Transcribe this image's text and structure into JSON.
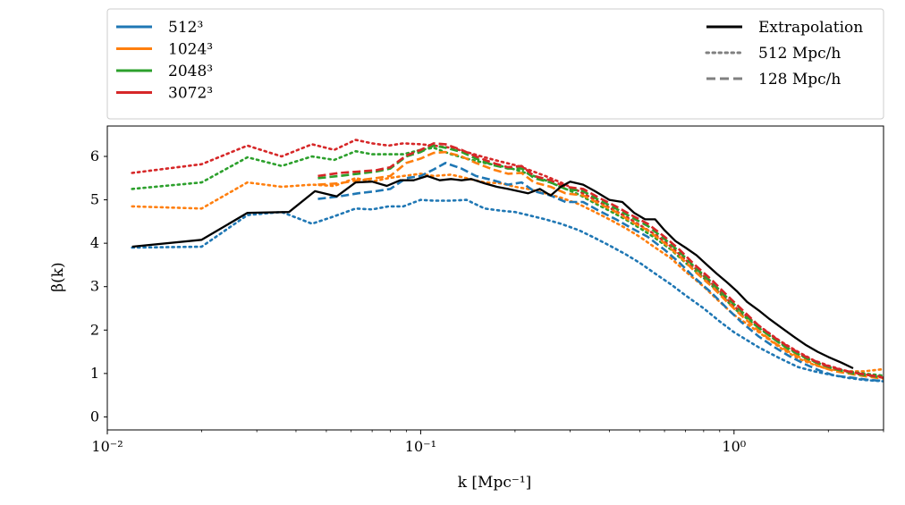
{
  "chart_data": {
    "type": "line",
    "title": "",
    "xlabel": "k [Mpc⁻¹]",
    "ylabel": "β(k)",
    "xscale": "log",
    "xlim": [
      0.01,
      3.0
    ],
    "ylim": [
      -0.3,
      6.7
    ],
    "yticks": [
      0,
      1,
      2,
      3,
      4,
      5,
      6
    ],
    "xticks": [
      {
        "value": 0.01,
        "label": "10⁻²"
      },
      {
        "value": 0.1,
        "label": "10⁻¹"
      },
      {
        "value": 1,
        "label": "10⁰"
      }
    ],
    "legend_left": [
      {
        "label": "512³",
        "color": "#1f77b4",
        "style": "solid"
      },
      {
        "label": "1024³",
        "color": "#ff7f0e",
        "style": "solid"
      },
      {
        "label": "2048³",
        "color": "#2ca02c",
        "style": "solid"
      },
      {
        "label": "3072³",
        "color": "#d62728",
        "style": "solid"
      }
    ],
    "legend_right": [
      {
        "label": "Extrapolation",
        "color": "#000000",
        "style": "solid"
      },
      {
        "label": "512 Mpc/h",
        "color": "#808080",
        "style": "dotted"
      },
      {
        "label": "128 Mpc/h",
        "color": "#808080",
        "style": "dashed"
      }
    ],
    "series": [
      {
        "name": "512³ (512 Mpc/h)",
        "color": "#1f77b4",
        "style": "dotted",
        "x": [
          0.012,
          0.02,
          0.028,
          0.036,
          0.045,
          0.053,
          0.062,
          0.07,
          0.079,
          0.088,
          0.1,
          0.11,
          0.125,
          0.14,
          0.16,
          0.18,
          0.2,
          0.22,
          0.25,
          0.28,
          0.32,
          0.36,
          0.4,
          0.45,
          0.5,
          0.56,
          0.63,
          0.7,
          0.8,
          0.9,
          1.0,
          1.2,
          1.4,
          1.6,
          1.8,
          2.0,
          2.3,
          2.6,
          3.0
        ],
        "y": [
          3.9,
          3.92,
          4.65,
          4.72,
          4.45,
          4.62,
          4.8,
          4.78,
          4.85,
          4.85,
          5.0,
          4.98,
          4.98,
          5.0,
          4.8,
          4.75,
          4.72,
          4.65,
          4.55,
          4.45,
          4.3,
          4.12,
          3.95,
          3.75,
          3.55,
          3.3,
          3.05,
          2.8,
          2.5,
          2.2,
          1.95,
          1.6,
          1.35,
          1.15,
          1.05,
          0.98,
          0.9,
          0.85,
          0.82
        ]
      },
      {
        "name": "1024³ (512 Mpc/h)",
        "color": "#ff7f0e",
        "style": "dotted",
        "x": [
          0.012,
          0.02,
          0.028,
          0.036,
          0.045,
          0.053,
          0.062,
          0.07,
          0.079,
          0.088,
          0.1,
          0.11,
          0.125,
          0.14,
          0.16,
          0.18,
          0.2,
          0.22,
          0.25,
          0.28,
          0.32,
          0.36,
          0.4,
          0.45,
          0.5,
          0.56,
          0.63,
          0.7,
          0.8,
          0.9,
          1.0,
          1.2,
          1.4,
          1.6,
          1.8,
          2.0,
          2.3,
          2.6,
          3.0
        ],
        "y": [
          4.85,
          4.8,
          5.4,
          5.3,
          5.35,
          5.32,
          5.5,
          5.42,
          5.5,
          5.55,
          5.6,
          5.55,
          5.58,
          5.5,
          5.4,
          5.38,
          5.3,
          5.25,
          5.15,
          5.05,
          4.9,
          4.72,
          4.55,
          4.35,
          4.15,
          3.9,
          3.65,
          3.35,
          3.0,
          2.65,
          2.35,
          1.95,
          1.6,
          1.35,
          1.2,
          1.1,
          1.05,
          1.05,
          1.1
        ]
      },
      {
        "name": "2048³ (512 Mpc/h)",
        "color": "#2ca02c",
        "style": "dotted",
        "x": [
          0.012,
          0.02,
          0.028,
          0.036,
          0.045,
          0.053,
          0.062,
          0.07,
          0.079,
          0.088,
          0.1,
          0.11,
          0.125,
          0.14,
          0.16,
          0.18,
          0.2,
          0.22,
          0.25,
          0.28,
          0.32,
          0.36,
          0.4,
          0.45,
          0.5,
          0.56,
          0.63,
          0.7,
          0.8,
          0.9,
          1.0,
          1.2,
          1.4,
          1.6,
          1.8,
          2.0,
          2.3,
          2.6,
          3.0
        ],
        "y": [
          5.25,
          5.4,
          5.98,
          5.78,
          6.0,
          5.92,
          6.12,
          6.05,
          6.05,
          6.05,
          6.15,
          6.2,
          6.05,
          5.95,
          5.85,
          5.78,
          5.7,
          5.6,
          5.45,
          5.3,
          5.12,
          4.92,
          4.75,
          4.55,
          4.35,
          4.12,
          3.85,
          3.55,
          3.2,
          2.85,
          2.5,
          2.05,
          1.7,
          1.45,
          1.28,
          1.15,
          1.05,
          1.0,
          0.95
        ]
      },
      {
        "name": "3072³ (512 Mpc/h)",
        "color": "#d62728",
        "style": "dotted",
        "x": [
          0.012,
          0.02,
          0.028,
          0.036,
          0.045,
          0.053,
          0.062,
          0.07,
          0.079,
          0.088,
          0.1,
          0.11,
          0.125,
          0.14,
          0.16,
          0.18,
          0.2,
          0.22,
          0.25,
          0.28,
          0.32,
          0.36,
          0.4,
          0.45,
          0.5,
          0.56,
          0.63,
          0.7,
          0.8,
          0.9,
          1.0,
          1.2,
          1.4,
          1.6,
          1.8,
          2.0,
          2.3,
          2.6,
          3.0
        ],
        "y": [
          5.62,
          5.82,
          6.25,
          6.0,
          6.28,
          6.15,
          6.38,
          6.3,
          6.25,
          6.3,
          6.28,
          6.25,
          6.2,
          6.1,
          5.98,
          5.88,
          5.8,
          5.7,
          5.55,
          5.4,
          5.2,
          5.0,
          4.82,
          4.62,
          4.42,
          4.2,
          3.92,
          3.62,
          3.25,
          2.9,
          2.55,
          2.1,
          1.75,
          1.5,
          1.3,
          1.18,
          1.05,
          0.98,
          0.92
        ]
      },
      {
        "name": "512³ (128 Mpc/h)",
        "color": "#1f77b4",
        "style": "dashed",
        "x": [
          0.047,
          0.055,
          0.063,
          0.072,
          0.08,
          0.09,
          0.1,
          0.11,
          0.12,
          0.135,
          0.15,
          0.17,
          0.19,
          0.21,
          0.23,
          0.26,
          0.29,
          0.33,
          0.37,
          0.42,
          0.47,
          0.53,
          0.6,
          0.67,
          0.75,
          0.85,
          0.95,
          1.05,
          1.2,
          1.35,
          1.5,
          1.7,
          1.9,
          2.1,
          2.4,
          2.7,
          3.0
        ],
        "y": [
          5.02,
          5.08,
          5.15,
          5.2,
          5.25,
          5.5,
          5.55,
          5.7,
          5.85,
          5.72,
          5.55,
          5.45,
          5.35,
          5.4,
          5.2,
          5.1,
          4.95,
          4.95,
          4.75,
          4.55,
          4.35,
          4.15,
          3.85,
          3.55,
          3.2,
          2.85,
          2.5,
          2.2,
          1.85,
          1.6,
          1.4,
          1.2,
          1.05,
          0.95,
          0.9,
          0.85,
          0.83
        ]
      },
      {
        "name": "1024³ (128 Mpc/h)",
        "color": "#ff7f0e",
        "style": "dashed",
        "x": [
          0.047,
          0.055,
          0.063,
          0.072,
          0.08,
          0.09,
          0.1,
          0.11,
          0.12,
          0.135,
          0.15,
          0.17,
          0.19,
          0.21,
          0.23,
          0.26,
          0.29,
          0.33,
          0.37,
          0.42,
          0.47,
          0.53,
          0.6,
          0.67,
          0.75,
          0.85,
          0.95,
          1.05,
          1.2,
          1.35,
          1.5,
          1.7,
          1.9,
          2.1,
          2.4,
          2.7,
          3.0
        ],
        "y": [
          5.35,
          5.38,
          5.45,
          5.5,
          5.55,
          5.85,
          5.95,
          6.08,
          6.1,
          6.0,
          5.85,
          5.7,
          5.6,
          5.62,
          5.4,
          5.3,
          5.15,
          5.1,
          4.92,
          4.72,
          4.5,
          4.3,
          4.0,
          3.7,
          3.35,
          3.0,
          2.65,
          2.35,
          1.98,
          1.7,
          1.5,
          1.3,
          1.15,
          1.05,
          0.98,
          0.92,
          0.88
        ]
      },
      {
        "name": "2048³ (128 Mpc/h)",
        "color": "#2ca02c",
        "style": "dashed",
        "x": [
          0.047,
          0.055,
          0.063,
          0.072,
          0.08,
          0.09,
          0.1,
          0.11,
          0.12,
          0.135,
          0.15,
          0.17,
          0.19,
          0.21,
          0.23,
          0.26,
          0.29,
          0.33,
          0.37,
          0.42,
          0.47,
          0.53,
          0.6,
          0.67,
          0.75,
          0.85,
          0.95,
          1.05,
          1.2,
          1.35,
          1.5,
          1.7,
          1.9,
          2.1,
          2.4,
          2.7,
          3.0
        ],
        "y": [
          5.5,
          5.55,
          5.6,
          5.65,
          5.72,
          6.0,
          6.1,
          6.25,
          6.2,
          6.1,
          5.95,
          5.8,
          5.72,
          5.72,
          5.5,
          5.4,
          5.25,
          5.2,
          5.0,
          4.8,
          4.6,
          4.4,
          4.1,
          3.8,
          3.45,
          3.1,
          2.75,
          2.45,
          2.05,
          1.78,
          1.55,
          1.35,
          1.2,
          1.1,
          1.0,
          0.95,
          0.9
        ]
      },
      {
        "name": "3072³ (128 Mpc/h)",
        "color": "#d62728",
        "style": "dashed",
        "x": [
          0.047,
          0.055,
          0.063,
          0.072,
          0.08,
          0.09,
          0.1,
          0.11,
          0.12,
          0.135,
          0.15,
          0.17,
          0.19,
          0.21,
          0.23,
          0.26,
          0.29,
          0.33,
          0.37,
          0.42,
          0.47,
          0.53,
          0.6,
          0.67,
          0.75,
          0.85,
          0.95,
          1.05,
          1.2,
          1.35,
          1.5,
          1.7,
          1.9,
          2.1,
          2.4,
          2.7,
          3.0
        ],
        "y": [
          5.55,
          5.62,
          5.65,
          5.68,
          5.75,
          6.02,
          6.15,
          6.3,
          6.28,
          6.15,
          6.0,
          5.85,
          5.75,
          5.78,
          5.55,
          5.45,
          5.3,
          5.25,
          5.05,
          4.85,
          4.65,
          4.45,
          4.15,
          3.85,
          3.5,
          3.15,
          2.8,
          2.5,
          2.1,
          1.82,
          1.6,
          1.38,
          1.22,
          1.12,
          1.02,
          0.96,
          0.9
        ]
      },
      {
        "name": "Extrapolation",
        "color": "#000000",
        "style": "solid",
        "x": [
          0.012,
          0.02,
          0.028,
          0.038,
          0.046,
          0.054,
          0.062,
          0.07,
          0.078,
          0.086,
          0.095,
          0.105,
          0.115,
          0.125,
          0.135,
          0.145,
          0.16,
          0.175,
          0.19,
          0.205,
          0.22,
          0.24,
          0.26,
          0.28,
          0.3,
          0.33,
          0.36,
          0.4,
          0.44,
          0.48,
          0.52,
          0.56,
          0.6,
          0.65,
          0.7,
          0.76,
          0.82,
          0.88,
          0.95,
          1.02,
          1.1,
          1.2,
          1.3,
          1.42,
          1.55,
          1.7,
          1.85,
          2.0,
          2.2,
          2.4
        ],
        "y": [
          3.92,
          4.08,
          4.7,
          4.72,
          5.2,
          5.08,
          5.4,
          5.42,
          5.32,
          5.45,
          5.45,
          5.55,
          5.45,
          5.48,
          5.45,
          5.48,
          5.38,
          5.3,
          5.25,
          5.2,
          5.15,
          5.25,
          5.1,
          5.3,
          5.42,
          5.35,
          5.2,
          5.0,
          4.95,
          4.7,
          4.55,
          4.55,
          4.3,
          4.05,
          3.9,
          3.72,
          3.5,
          3.3,
          3.1,
          2.9,
          2.65,
          2.45,
          2.25,
          2.05,
          1.85,
          1.65,
          1.5,
          1.38,
          1.25,
          1.12
        ]
      }
    ]
  }
}
